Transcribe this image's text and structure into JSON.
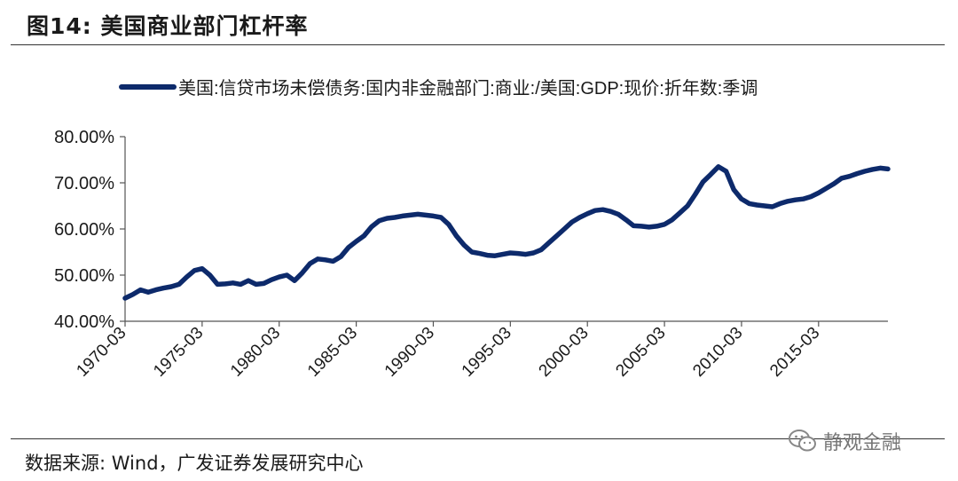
{
  "header": {
    "title": "图14:  美国商业部门杠杆率"
  },
  "footer": {
    "source": "数据来源:  Wind，广发证券发展研究中心"
  },
  "watermark": {
    "text": "静观金融",
    "icon": "wechat-icon"
  },
  "chart_data": {
    "type": "line",
    "title": "",
    "xlabel": "",
    "ylabel": "",
    "legend_position": "top",
    "grid": false,
    "color": "#0d2a6b",
    "x_tick_labels": [
      "1970-03",
      "1975-03",
      "1980-03",
      "1985-03",
      "1990-03",
      "1995-03",
      "2000-03",
      "2005-03",
      "2010-03",
      "2015-03"
    ],
    "y_tick_labels": [
      "40.00%",
      "50.00%",
      "60.00%",
      "70.00%",
      "80.00%"
    ],
    "ylim": [
      40,
      80
    ],
    "xlim": [
      1970.0,
      2019.5
    ],
    "series": [
      {
        "name": "美国:信贷市场未偿债务:国内非金融部门:商业:/美国:GDP:现价:折年数:季调",
        "x": [
          1970.0,
          1970.5,
          1971.0,
          1971.5,
          1972.0,
          1972.5,
          1973.0,
          1973.5,
          1974.0,
          1974.5,
          1975.0,
          1975.5,
          1976.0,
          1976.5,
          1977.0,
          1977.5,
          1978.0,
          1978.5,
          1979.0,
          1979.5,
          1980.0,
          1980.5,
          1981.0,
          1981.5,
          1982.0,
          1982.5,
          1983.0,
          1983.5,
          1984.0,
          1984.5,
          1985.0,
          1985.5,
          1986.0,
          1986.5,
          1987.0,
          1987.5,
          1988.0,
          1988.5,
          1989.0,
          1989.5,
          1990.0,
          1990.5,
          1991.0,
          1991.5,
          1992.0,
          1992.5,
          1993.0,
          1993.5,
          1994.0,
          1994.5,
          1995.0,
          1995.5,
          1996.0,
          1996.5,
          1997.0,
          1997.5,
          1998.0,
          1998.5,
          1999.0,
          1999.5,
          2000.0,
          2000.5,
          2001.0,
          2001.5,
          2002.0,
          2002.5,
          2003.0,
          2003.5,
          2004.0,
          2004.5,
          2005.0,
          2005.5,
          2006.0,
          2006.5,
          2007.0,
          2007.5,
          2008.0,
          2008.5,
          2009.0,
          2009.5,
          2010.0,
          2010.5,
          2011.0,
          2011.5,
          2012.0,
          2012.5,
          2013.0,
          2013.5,
          2014.0,
          2014.5,
          2015.0,
          2015.5,
          2016.0,
          2016.5,
          2017.0,
          2017.5,
          2018.0,
          2018.5,
          2019.0,
          2019.5
        ],
        "values": [
          45.0,
          45.8,
          46.8,
          46.3,
          46.8,
          47.2,
          47.5,
          48.0,
          49.6,
          51.0,
          51.4,
          50.0,
          48.0,
          48.1,
          48.3,
          48.0,
          48.8,
          48.0,
          48.2,
          49.0,
          49.6,
          50.0,
          48.8,
          50.5,
          52.5,
          53.5,
          53.3,
          53.0,
          54.0,
          56.0,
          57.3,
          58.5,
          60.5,
          61.8,
          62.3,
          62.5,
          62.8,
          63.0,
          63.2,
          63.0,
          62.8,
          62.5,
          61.0,
          58.5,
          56.5,
          55.0,
          54.7,
          54.3,
          54.2,
          54.5,
          54.8,
          54.7,
          54.5,
          54.8,
          55.5,
          57.0,
          58.5,
          60.0,
          61.5,
          62.5,
          63.3,
          64.0,
          64.2,
          63.8,
          63.2,
          62.0,
          60.7,
          60.6,
          60.4,
          60.6,
          61.0,
          62.0,
          63.5,
          65.0,
          67.5,
          70.2,
          71.8,
          73.5,
          72.5,
          68.5,
          66.5,
          65.5,
          65.2,
          65.0,
          64.8,
          65.5,
          66.0,
          66.3,
          66.5,
          67.0,
          67.8,
          68.8,
          69.8,
          71.0,
          71.4,
          72.0,
          72.5,
          72.9,
          73.2,
          73.0
        ]
      }
    ]
  }
}
